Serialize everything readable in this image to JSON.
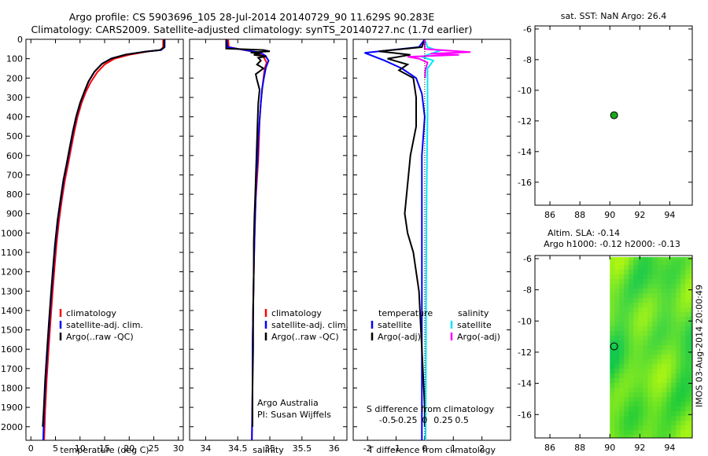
{
  "header": {
    "line1": "Argo profile: CS 5903696_105 28-Jul-2014 20140729_90 11.629S 90.283E",
    "line2": "Climatology: CARS2009. Satellite-adjusted climatology: synTS_20140727.nc (1.7d earlier)"
  },
  "colors": {
    "climatology": "#ff0000",
    "satellite": "#0000ff",
    "argo": "#000000",
    "sat_salinity": "#00e5ff",
    "argo_salinity": "#ff00ff",
    "argo_point": "#1aa81a"
  },
  "chart_data": [
    {
      "id": "temperature",
      "type": "line",
      "xlabel": "temperature (deg C)",
      "ylabel": "",
      "xlim": [
        -1,
        31
      ],
      "ylim": [
        2070,
        0
      ],
      "xticks": [
        0,
        5,
        10,
        15,
        20,
        25,
        30
      ],
      "xtick_labels": [
        "0",
        "5",
        "10",
        "15",
        "20",
        "25",
        "30"
      ],
      "yticks": [
        0,
        100,
        200,
        300,
        400,
        500,
        600,
        700,
        800,
        900,
        1000,
        1100,
        1200,
        1300,
        1400,
        1500,
        1600,
        1700,
        1800,
        1900,
        2000
      ],
      "legend": [
        "climatology",
        "satellite-adj. clim.",
        "Argo(..raw -QC)"
      ],
      "series": [
        {
          "name": "climatology",
          "color": "#ff0000",
          "points": [
            [
              26.9,
              0
            ],
            [
              26.9,
              40
            ],
            [
              26.4,
              55
            ],
            [
              24,
              62
            ],
            [
              20,
              80
            ],
            [
              17,
              100
            ],
            [
              15,
              130
            ],
            [
              13.5,
              170
            ],
            [
              12.2,
              220
            ],
            [
              11.2,
              270
            ],
            [
              10.3,
              330
            ],
            [
              9.5,
              400
            ],
            [
              8.8,
              480
            ],
            [
              8.2,
              560
            ],
            [
              7.6,
              640
            ],
            [
              6.9,
              730
            ],
            [
              6.3,
              830
            ],
            [
              5.7,
              940
            ],
            [
              5.2,
              1060
            ],
            [
              4.8,
              1180
            ],
            [
              4.4,
              1310
            ],
            [
              4.0,
              1450
            ],
            [
              3.6,
              1600
            ],
            [
              3.2,
              1760
            ],
            [
              2.9,
              1920
            ],
            [
              2.7,
              2070
            ]
          ]
        },
        {
          "name": "satellite-adj. clim.",
          "color": "#0000ff",
          "points": [
            [
              27.2,
              0
            ],
            [
              27.2,
              40
            ],
            [
              26.5,
              55
            ],
            [
              23.5,
              63
            ],
            [
              19.5,
              78
            ],
            [
              16.5,
              98
            ],
            [
              14.5,
              125
            ],
            [
              13,
              165
            ],
            [
              11.8,
              215
            ],
            [
              11,
              265
            ],
            [
              10.1,
              325
            ],
            [
              9.3,
              395
            ],
            [
              8.6,
              475
            ],
            [
              8,
              555
            ],
            [
              7.4,
              635
            ],
            [
              6.7,
              725
            ],
            [
              6.1,
              825
            ],
            [
              5.5,
              935
            ],
            [
              5.0,
              1055
            ],
            [
              4.6,
              1175
            ],
            [
              4.2,
              1305
            ],
            [
              3.8,
              1445
            ],
            [
              3.4,
              1595
            ],
            [
              3.0,
              1755
            ],
            [
              2.7,
              1915
            ],
            [
              2.5,
              2070
            ]
          ]
        },
        {
          "name": "Argo(..raw -QC)",
          "color": "#000000",
          "points": [
            [
              27.1,
              0
            ],
            [
              27.1,
              42
            ],
            [
              26.2,
              56
            ],
            [
              23.2,
              64
            ],
            [
              19.2,
              79
            ],
            [
              16.3,
              100
            ],
            [
              14.4,
              128
            ],
            [
              12.9,
              168
            ],
            [
              11.7,
              218
            ],
            [
              10.9,
              268
            ],
            [
              10,
              328
            ],
            [
              9.2,
              398
            ],
            [
              8.5,
              478
            ],
            [
              7.9,
              558
            ],
            [
              7.3,
              638
            ],
            [
              6.6,
              728
            ],
            [
              6.0,
              828
            ],
            [
              5.4,
              938
            ],
            [
              4.9,
              1058
            ],
            [
              4.5,
              1178
            ],
            [
              4.1,
              1308
            ],
            [
              3.7,
              1448
            ],
            [
              3.3,
              1598
            ],
            [
              2.9,
              1758
            ],
            [
              2.6,
              1918
            ],
            [
              2.4,
              2000
            ]
          ]
        }
      ]
    },
    {
      "id": "salinity",
      "type": "line",
      "xlabel": "salinity",
      "xlim": [
        33.75,
        36.2
      ],
      "ylim": [
        2070,
        0
      ],
      "xticks": [
        34,
        34.5,
        35,
        35.5,
        36
      ],
      "xtick_labels": [
        "34",
        "34.5",
        "35",
        "35.5",
        "36"
      ],
      "legend": [
        "climatology",
        "satellite-adj. clim.",
        "Argo(..raw -QC)"
      ],
      "annotation": [
        "Argo Australia",
        "PI: Susan Wijffels"
      ],
      "series": [
        {
          "name": "climatology",
          "color": "#ff0000",
          "points": [
            [
              34.35,
              0
            ],
            [
              34.36,
              40
            ],
            [
              34.6,
              55
            ],
            [
              34.82,
              70
            ],
            [
              34.9,
              90
            ],
            [
              34.95,
              120
            ],
            [
              34.92,
              150
            ],
            [
              34.9,
              200
            ],
            [
              34.88,
              260
            ],
            [
              34.86,
              330
            ],
            [
              34.84,
              420
            ],
            [
              34.83,
              520
            ],
            [
              34.82,
              620
            ],
            [
              34.8,
              720
            ],
            [
              34.78,
              820
            ],
            [
              34.77,
              920
            ],
            [
              34.76,
              1050
            ],
            [
              34.75,
              1200
            ],
            [
              34.74,
              1400
            ],
            [
              34.73,
              1600
            ],
            [
              34.73,
              1800
            ],
            [
              34.72,
              2070
            ]
          ]
        },
        {
          "name": "satellite-adj. clim.",
          "color": "#0000ff",
          "points": [
            [
              34.33,
              0
            ],
            [
              34.34,
              40
            ],
            [
              34.62,
              56
            ],
            [
              34.85,
              68
            ],
            [
              34.93,
              85
            ],
            [
              34.98,
              110
            ],
            [
              34.94,
              145
            ],
            [
              34.91,
              195
            ],
            [
              34.88,
              255
            ],
            [
              34.86,
              325
            ],
            [
              34.84,
              415
            ],
            [
              34.82,
              515
            ],
            [
              34.81,
              615
            ],
            [
              34.79,
              715
            ],
            [
              34.78,
              815
            ],
            [
              34.77,
              915
            ],
            [
              34.76,
              1045
            ],
            [
              34.75,
              1195
            ],
            [
              34.74,
              1395
            ],
            [
              34.73,
              1595
            ],
            [
              34.73,
              1795
            ],
            [
              34.72,
              2070
            ]
          ]
        },
        {
          "name": "Argo(..raw -QC)",
          "color": "#000000",
          "points": [
            [
              34.32,
              0
            ],
            [
              34.32,
              48
            ],
            [
              34.9,
              55
            ],
            [
              35.0,
              62
            ],
            [
              34.7,
              68
            ],
            [
              34.85,
              74
            ],
            [
              34.75,
              80
            ],
            [
              34.95,
              88
            ],
            [
              34.82,
              95
            ],
            [
              34.86,
              110
            ],
            [
              34.8,
              130
            ],
            [
              34.9,
              150
            ],
            [
              34.78,
              180
            ],
            [
              34.8,
              210
            ],
            [
              34.84,
              260
            ],
            [
              34.82,
              330
            ],
            [
              34.81,
              420
            ],
            [
              34.8,
              520
            ],
            [
              34.79,
              620
            ],
            [
              34.78,
              720
            ],
            [
              34.77,
              820
            ],
            [
              34.76,
              920
            ],
            [
              34.75,
              1050
            ],
            [
              34.75,
              1200
            ],
            [
              34.74,
              1400
            ],
            [
              34.74,
              1600
            ],
            [
              34.73,
              1800
            ],
            [
              34.73,
              2000
            ]
          ]
        }
      ]
    },
    {
      "id": "difference",
      "type": "line",
      "xlabel": "T difference from climatology",
      "xlabel_top": "S difference from climatology",
      "xlim": [
        -2.5,
        3
      ],
      "ylim": [
        2070,
        0
      ],
      "xticks": [
        -2,
        -1,
        0,
        1,
        2
      ],
      "xtick_labels": [
        "-2",
        "-1",
        "0",
        "1",
        "2"
      ],
      "sticks_values": [
        -0.5,
        -0.25,
        0,
        0.25,
        0.5
      ],
      "sticks_labels": [
        "-0.5",
        "-0.25",
        "0",
        "0.25",
        "0.5"
      ],
      "legend": [
        "temperature",
        "satellite",
        "Argo(-adj)",
        "salinity",
        "satellite",
        "Argo(-adj)"
      ],
      "series": [
        {
          "name": "T satellite",
          "color": "#0000ff",
          "points": [
            [
              0,
              0
            ],
            [
              -0.2,
              40
            ],
            [
              -2.1,
              70
            ],
            [
              -1.4,
              110
            ],
            [
              -0.8,
              150
            ],
            [
              -0.3,
              200
            ],
            [
              -0.1,
              280
            ],
            [
              0,
              400
            ],
            [
              -0.1,
              600
            ],
            [
              -0.1,
              900
            ],
            [
              -0.1,
              1300
            ],
            [
              -0.1,
              1700
            ],
            [
              -0.1,
              2070
            ]
          ]
        },
        {
          "name": "T Argo(-adj)",
          "color": "#000000",
          "points": [
            [
              0,
              0
            ],
            [
              -0.1,
              40
            ],
            [
              -1.6,
              62
            ],
            [
              -0.5,
              80
            ],
            [
              -1.3,
              100
            ],
            [
              -0.6,
              130
            ],
            [
              -0.9,
              160
            ],
            [
              -0.4,
              200
            ],
            [
              -0.3,
              300
            ],
            [
              -0.3,
              450
            ],
            [
              -0.5,
              600
            ],
            [
              -0.6,
              750
            ],
            [
              -0.7,
              900
            ],
            [
              -0.6,
              1000
            ],
            [
              -0.4,
              1100
            ],
            [
              -0.2,
              1300
            ],
            [
              -0.1,
              1600
            ],
            [
              0,
              1900
            ],
            [
              0,
              2000
            ]
          ]
        },
        {
          "name": "S satellite",
          "color": "#00e5ff",
          "points": [
            [
              0,
              0
            ],
            [
              0.1,
              40
            ],
            [
              0.5,
              60
            ],
            [
              -0.1,
              90
            ],
            [
              0.3,
              110
            ],
            [
              0.1,
              150
            ],
            [
              0.1,
              250
            ],
            [
              0.1,
              400
            ],
            [
              0.08,
              600
            ],
            [
              0.06,
              900
            ],
            [
              0.05,
              1300
            ],
            [
              0.04,
              1700
            ],
            [
              0.03,
              2070
            ]
          ]
        },
        {
          "name": "S Argo(-adj)",
          "color": "#ff00ff",
          "points": [
            [
              0,
              0
            ],
            [
              0,
              50
            ],
            [
              1.6,
              66
            ],
            [
              0.2,
              74
            ],
            [
              1.2,
              80
            ],
            [
              -0.6,
              90
            ],
            [
              -0.2,
              100
            ],
            [
              0.1,
              120
            ],
            [
              0.02,
              160
            ],
            [
              0.01,
              200
            ]
          ]
        }
      ]
    },
    {
      "id": "map_sst",
      "type": "scatter",
      "title": "sat. SST: NaN Argo: 26.4",
      "xlim": [
        85,
        95.5
      ],
      "ylim": [
        -17.5,
        -5.8
      ],
      "xticks": [
        86,
        88,
        90,
        92,
        94
      ],
      "yticks": [
        -6,
        -8,
        -10,
        -12,
        -14,
        -16
      ],
      "points": [
        [
          90.283,
          -11.629
        ]
      ]
    },
    {
      "id": "map_sla",
      "type": "heatmap",
      "title": "Altim. SLA: -0.14",
      "subtitle": "Argo h1000: -0.12 h2000: -0.13",
      "xlim": [
        85,
        95.5
      ],
      "ylim": [
        -17.5,
        -5.8
      ],
      "xticks": [
        86,
        88,
        90,
        92,
        94
      ],
      "yticks": [
        -6,
        -8,
        -10,
        -12,
        -14,
        -16
      ],
      "data_xrange": [
        90,
        95.5
      ],
      "points": [
        [
          90.283,
          -11.629
        ]
      ]
    }
  ],
  "side_label": "IMOS 03-Aug-2014 20:00:49"
}
